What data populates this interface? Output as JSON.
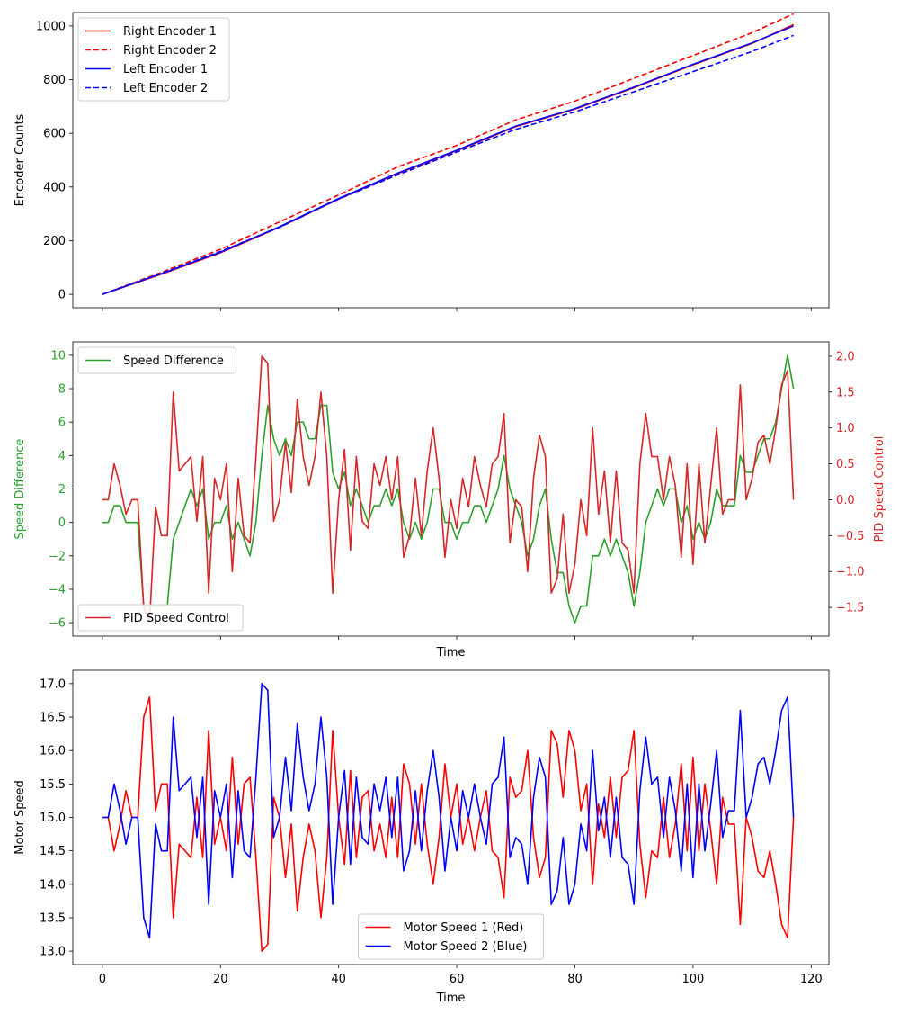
{
  "chart_data": [
    {
      "type": "line",
      "ylabel": "Encoder Counts",
      "xlim": [
        -5,
        123
      ],
      "ylim": [
        -50,
        1050
      ],
      "x_ticks": [
        0,
        20,
        40,
        60,
        80,
        100,
        120
      ],
      "y_ticks": [
        0,
        200,
        400,
        600,
        800,
        1000
      ],
      "legend": "top-left",
      "series": [
        {
          "name": "Right Encoder 1",
          "color": "#ff0000",
          "dash": "solid",
          "x": [
            0,
            10,
            20,
            30,
            40,
            50,
            60,
            70,
            80,
            90,
            100,
            110,
            117
          ],
          "values": [
            0,
            75,
            155,
            250,
            355,
            450,
            535,
            625,
            690,
            770,
            855,
            935,
            1005
          ]
        },
        {
          "name": "Right Encoder 2",
          "color": "#ff0000",
          "dash": "dashed",
          "x": [
            0,
            10,
            20,
            30,
            40,
            50,
            60,
            70,
            80,
            90,
            100,
            110,
            117
          ],
          "values": [
            0,
            82,
            168,
            270,
            370,
            475,
            555,
            650,
            720,
            805,
            890,
            975,
            1045
          ]
        },
        {
          "name": "Left Encoder 1",
          "color": "#0000ff",
          "dash": "solid",
          "x": [
            0,
            10,
            20,
            30,
            40,
            50,
            60,
            70,
            80,
            90,
            100,
            110,
            117
          ],
          "values": [
            0,
            77,
            157,
            252,
            357,
            452,
            537,
            627,
            692,
            772,
            857,
            937,
            1000
          ]
        },
        {
          "name": "Left Encoder 2",
          "color": "#0000ff",
          "dash": "dashed",
          "x": [
            0,
            10,
            20,
            30,
            40,
            50,
            60,
            70,
            80,
            90,
            100,
            110,
            117
          ],
          "values": [
            0,
            78,
            160,
            250,
            355,
            445,
            530,
            615,
            680,
            755,
            830,
            905,
            965
          ]
        }
      ]
    },
    {
      "type": "line",
      "xlabel": "Time",
      "ylabel": "Speed Difference",
      "y2label": "PID Speed Control",
      "xlim": [
        -5,
        123
      ],
      "ylim": [
        -6.8,
        10.8
      ],
      "y2lim": [
        -1.9,
        2.2
      ],
      "x_ticks": [
        0,
        20,
        40,
        60,
        80,
        100,
        120
      ],
      "y_ticks": [
        -6,
        -4,
        -2,
        0,
        2,
        4,
        6,
        8,
        10
      ],
      "y2_ticks": [
        -1.5,
        -1.0,
        -0.5,
        0.0,
        0.5,
        1.0,
        1.5,
        2.0
      ],
      "left_color": "#2ca02c",
      "right_color": "#d62728",
      "series": [
        {
          "name": "Speed Difference",
          "axis": "left",
          "color": "#2ca02c",
          "legend": "top-left",
          "values": [
            0,
            0,
            1,
            1,
            0,
            0,
            0,
            -5,
            -5,
            -5,
            -5,
            -5,
            -1,
            0,
            1,
            2,
            1,
            2,
            -1,
            0,
            0,
            1,
            -1,
            0,
            -1,
            -2,
            0,
            4,
            7,
            5,
            4,
            5,
            4,
            6,
            6,
            5,
            5,
            7,
            7,
            3,
            2,
            3,
            1,
            2,
            1,
            0,
            1,
            1,
            2,
            1,
            2,
            0,
            -1,
            0,
            -1,
            0,
            2,
            2,
            0,
            0,
            -1,
            0,
            0,
            1,
            1,
            0,
            1,
            2,
            4,
            2,
            1,
            0,
            -2,
            -1,
            1,
            2,
            -1,
            -3,
            -3,
            -5,
            -6,
            -5,
            -5,
            -2,
            -2,
            -1,
            -2,
            -1,
            -2,
            -3,
            -5,
            -3,
            0,
            1,
            2,
            1,
            2,
            2,
            0,
            1,
            -1,
            0,
            -1,
            0,
            2,
            1,
            1,
            1,
            4,
            3,
            3,
            4,
            5,
            5,
            6,
            8,
            10,
            8
          ]
        },
        {
          "name": "PID Speed Control",
          "axis": "right",
          "color": "#d62728",
          "legend": "bottom-left",
          "values": [
            0,
            0,
            0.5,
            0.2,
            -0.2,
            0,
            0,
            -1.5,
            -1.7,
            -0.1,
            -0.5,
            -0.5,
            1.5,
            0.4,
            0.5,
            0.6,
            -0.3,
            0.6,
            -1.3,
            0.3,
            0,
            0.5,
            -1,
            0.3,
            -0.5,
            -0.6,
            0.6,
            2,
            1.9,
            -0.3,
            0,
            0.8,
            0.1,
            1.4,
            0.6,
            0.2,
            0.6,
            1.5,
            0.6,
            -1.3,
            0,
            0.7,
            -0.7,
            0.6,
            -0.3,
            -0.4,
            0.5,
            0.2,
            0.6,
            0,
            0.6,
            -0.8,
            -0.5,
            0.3,
            -0.5,
            0.4,
            1,
            0.3,
            -0.8,
            0,
            -0.4,
            0.3,
            -0.1,
            0.6,
            0.2,
            -0.1,
            0.5,
            0.6,
            1.2,
            -0.6,
            0,
            -0.1,
            -1,
            0.3,
            0.9,
            0.6,
            -1.3,
            -1.1,
            -0.2,
            -1.3,
            -0.9,
            0,
            -0.5,
            1,
            -0.2,
            0.4,
            -0.6,
            0.4,
            -0.6,
            -0.7,
            -1.3,
            0.5,
            1.2,
            0.6,
            0.6,
            0,
            0.6,
            0.2,
            -0.8,
            0.5,
            -0.9,
            0.5,
            -0.6,
            0.2,
            1,
            -0.2,
            0,
            0,
            1.6,
            0,
            0.3,
            0.8,
            0.9,
            0.5,
            1,
            1.6,
            1.8,
            0
          ]
        }
      ]
    },
    {
      "type": "line",
      "xlabel": "Time",
      "ylabel": "Motor Speed",
      "xlim": [
        -5,
        123
      ],
      "ylim": [
        12.8,
        17.2
      ],
      "x_ticks": [
        0,
        20,
        40,
        60,
        80,
        100,
        120
      ],
      "y_ticks": [
        13.0,
        13.5,
        14.0,
        14.5,
        15.0,
        15.5,
        16.0,
        16.5,
        17.0
      ],
      "legend": "bottom-center",
      "series": [
        {
          "name": "Motor Speed 1 (Red)",
          "color": "#ff0000",
          "values": [
            15,
            15,
            14.5,
            14.9,
            15.4,
            15,
            15,
            16.5,
            16.8,
            15.1,
            15.5,
            15.5,
            13.5,
            14.6,
            14.5,
            14.4,
            15.3,
            14.4,
            16.3,
            14.6,
            15,
            14.5,
            15.9,
            14.6,
            15.5,
            15.6,
            14.4,
            13,
            13.1,
            15.3,
            15,
            14.1,
            14.9,
            13.6,
            14.4,
            14.9,
            14.5,
            13.5,
            14.4,
            16.3,
            15,
            14.3,
            15.7,
            14.4,
            15.3,
            15.4,
            14.5,
            14.9,
            14.4,
            15.3,
            14.4,
            15.8,
            15.5,
            14.6,
            15.5,
            14.6,
            14,
            14.7,
            15.8,
            15,
            15.5,
            14.6,
            15,
            14.5,
            15,
            15.4,
            14.5,
            14.4,
            13.8,
            15.6,
            15.3,
            15.4,
            16,
            14.7,
            14.1,
            14.4,
            16.3,
            16.1,
            15.3,
            16.3,
            16,
            15.1,
            15.5,
            14,
            15.2,
            14.7,
            15.6,
            14.7,
            15.6,
            15.7,
            16.3,
            14.6,
            13.8,
            14.5,
            14.4,
            15.3,
            14.4,
            14.9,
            15.8,
            14.5,
            15.9,
            14.5,
            15.5,
            14.8,
            14,
            15.3,
            14.9,
            14.9,
            13.4,
            15,
            14.7,
            14.2,
            14.1,
            14.5,
            14,
            13.4,
            13.2,
            15
          ]
        },
        {
          "name": "Motor Speed 2 (Blue)",
          "color": "#0000ff",
          "values": [
            15,
            15,
            15.5,
            15.1,
            14.6,
            15,
            15,
            13.5,
            13.2,
            14.9,
            14.5,
            14.5,
            16.5,
            15.4,
            15.5,
            15.6,
            14.7,
            15.6,
            13.7,
            15.4,
            15,
            15.5,
            14.1,
            15.4,
            14.5,
            14.4,
            15.6,
            17,
            16.9,
            14.7,
            15,
            15.9,
            15.1,
            16.4,
            15.6,
            15.1,
            15.5,
            16.5,
            15.6,
            13.7,
            15,
            15.7,
            14.3,
            15.6,
            14.7,
            14.6,
            15.5,
            15.1,
            15.6,
            14.7,
            15.6,
            14.2,
            14.5,
            15.4,
            14.5,
            15.4,
            16,
            15.3,
            14.2,
            15,
            14.5,
            15.4,
            15,
            15.5,
            15,
            14.6,
            15.5,
            15.6,
            16.2,
            14.4,
            14.7,
            14.6,
            14,
            15.3,
            15.9,
            15.6,
            13.7,
            13.9,
            14.7,
            13.7,
            14,
            14.9,
            14.5,
            16,
            14.8,
            15.3,
            14.4,
            15.3,
            14.4,
            14.3,
            13.7,
            15.4,
            16.2,
            15.5,
            15.6,
            14.7,
            15.6,
            15.1,
            14.2,
            15.5,
            14.1,
            15.5,
            14.5,
            15.2,
            16,
            14.7,
            15.1,
            15.1,
            16.6,
            15,
            15.3,
            15.8,
            15.9,
            15.5,
            16,
            16.6,
            16.8,
            15
          ]
        }
      ]
    }
  ]
}
